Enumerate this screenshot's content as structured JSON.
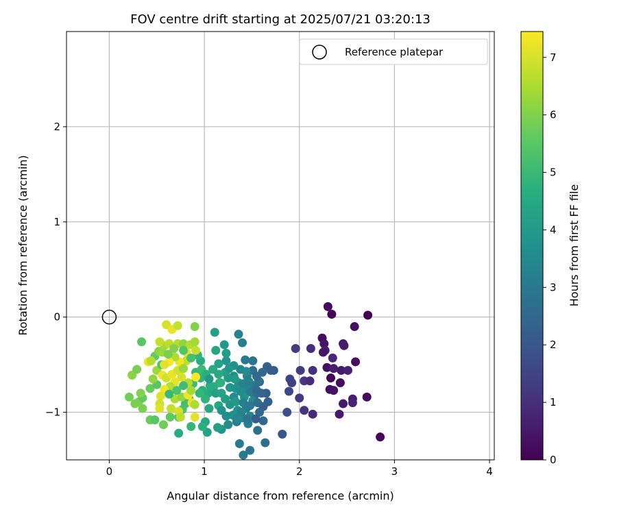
{
  "chart_data": {
    "type": "scatter",
    "title": "FOV centre drift starting at 2025/07/21 03:20:13",
    "xlabel": "Angular distance from reference (arcmin)",
    "ylabel": "Rotation from reference (arcmin)",
    "xlim": [
      -0.45,
      4.05
    ],
    "ylim": [
      -1.5,
      3.0
    ],
    "xticks": [
      "0",
      "1",
      "2",
      "3",
      "4"
    ],
    "yticks": [
      "−1",
      "0",
      "1",
      "2"
    ],
    "grid": true,
    "legend": {
      "location": "top-right",
      "entries": [
        "Reference platepar"
      ]
    },
    "reference": {
      "x": 0,
      "y": 0,
      "marker": "open-circle"
    },
    "colorbar": {
      "label": "Hours from first FF file",
      "colormap": "viridis",
      "range": [
        0,
        7.45
      ],
      "ticks": [
        "0",
        "1",
        "2",
        "3",
        "4",
        "5",
        "6",
        "7"
      ]
    },
    "series": [
      {
        "note_fields": "x (arcmin), y (arcmin), c (hours)",
        "points": [
          [
            2.72,
            0.02,
            0.0
          ],
          [
            2.34,
            0.03,
            0.1
          ],
          [
            2.3,
            0.11,
            0.2
          ],
          [
            2.58,
            -0.1,
            0.3
          ],
          [
            2.24,
            -0.22,
            0.25
          ],
          [
            2.26,
            -0.28,
            0.4
          ],
          [
            2.46,
            -0.28,
            0.5
          ],
          [
            2.47,
            -0.3,
            0.55
          ],
          [
            2.27,
            -0.35,
            0.6
          ],
          [
            2.25,
            -0.37,
            0.45
          ],
          [
            2.35,
            -0.43,
            0.8
          ],
          [
            2.59,
            -0.47,
            0.3
          ],
          [
            2.12,
            -0.33,
            0.9
          ],
          [
            2.29,
            -0.53,
            0.35
          ],
          [
            2.36,
            -0.54,
            0.65
          ],
          [
            2.44,
            -0.56,
            0.5
          ],
          [
            2.51,
            -0.56,
            0.7
          ],
          [
            2.33,
            -0.64,
            0.15
          ],
          [
            2.43,
            -0.69,
            0.25
          ],
          [
            2.32,
            -0.76,
            0.3
          ],
          [
            2.36,
            -0.77,
            0.4
          ],
          [
            2.71,
            -0.84,
            0.2
          ],
          [
            2.56,
            -0.86,
            0.6
          ],
          [
            2.46,
            -0.91,
            0.5
          ],
          [
            2.56,
            -0.9,
            0.75
          ],
          [
            2.42,
            -1.02,
            0.55
          ],
          [
            2.85,
            -1.26,
            0.1
          ],
          [
            2.14,
            -1.02,
            0.85
          ],
          [
            2.05,
            -0.98,
            1.1
          ],
          [
            2.14,
            -0.56,
            1.0
          ],
          [
            2.01,
            -0.56,
            1.3
          ],
          [
            2.05,
            -0.67,
            1.2
          ],
          [
            2.11,
            -0.67,
            0.9
          ],
          [
            1.9,
            -0.65,
            1.5
          ],
          [
            1.92,
            -0.69,
            1.4
          ],
          [
            1.89,
            -0.78,
            1.6
          ],
          [
            2.0,
            -0.85,
            1.2
          ],
          [
            1.96,
            -0.33,
            1.3
          ],
          [
            1.87,
            -1.0,
            1.8
          ],
          [
            1.82,
            -1.23,
            2.0
          ],
          [
            1.73,
            -0.56,
            2.1
          ],
          [
            1.66,
            -0.52,
            2.3
          ],
          [
            1.7,
            -0.56,
            2.2
          ],
          [
            1.61,
            -0.58,
            2.5
          ],
          [
            1.58,
            -0.68,
            2.4
          ],
          [
            1.65,
            -0.8,
            2.2
          ],
          [
            1.67,
            -0.89,
            2.3
          ],
          [
            1.58,
            -1.0,
            2.6
          ],
          [
            1.62,
            -1.09,
            2.5
          ],
          [
            1.56,
            -1.19,
            2.8
          ],
          [
            1.64,
            -1.32,
            2.7
          ],
          [
            1.48,
            -1.4,
            2.9
          ],
          [
            1.41,
            -1.45,
            3.0
          ],
          [
            1.37,
            -1.33,
            3.1
          ],
          [
            1.51,
            -0.46,
            2.9
          ],
          [
            1.43,
            -0.45,
            3.0
          ],
          [
            1.4,
            -0.27,
            3.2
          ],
          [
            1.36,
            -0.18,
            3.3
          ],
          [
            1.51,
            -0.56,
            2.7
          ],
          [
            1.45,
            -0.62,
            3.2
          ],
          [
            1.53,
            -0.72,
            2.9
          ],
          [
            1.46,
            -0.76,
            3.4
          ],
          [
            1.53,
            -0.82,
            2.6
          ],
          [
            1.51,
            -0.88,
            3.5
          ],
          [
            1.44,
            -0.96,
            3.1
          ],
          [
            1.48,
            -1.04,
            3.4
          ],
          [
            1.4,
            -1.06,
            3.6
          ],
          [
            1.46,
            -1.12,
            3.3
          ],
          [
            1.34,
            -1.1,
            3.0
          ],
          [
            1.35,
            -0.98,
            3.7
          ],
          [
            1.42,
            -0.84,
            3.8
          ],
          [
            1.31,
            -0.84,
            3.6
          ],
          [
            1.27,
            -0.92,
            3.9
          ],
          [
            1.36,
            -0.69,
            3.5
          ],
          [
            1.31,
            -0.62,
            3.7
          ],
          [
            1.38,
            -0.55,
            3.4
          ],
          [
            1.31,
            -0.51,
            3.8
          ],
          [
            1.23,
            -0.46,
            3.9
          ],
          [
            1.21,
            -0.29,
            4.0
          ],
          [
            1.23,
            -0.38,
            4.1
          ],
          [
            1.11,
            -0.16,
            4.2
          ],
          [
            1.15,
            -0.49,
            4.3
          ],
          [
            1.12,
            -0.35,
            4.4
          ],
          [
            1.22,
            -0.58,
            4.2
          ],
          [
            1.25,
            -0.64,
            4.0
          ],
          [
            1.27,
            -0.74,
            3.9
          ],
          [
            1.17,
            -0.69,
            4.3
          ],
          [
            1.15,
            -0.6,
            4.5
          ],
          [
            1.22,
            -0.86,
            4.1
          ],
          [
            1.15,
            -0.93,
            4.4
          ],
          [
            1.18,
            -0.98,
            3.8
          ],
          [
            1.23,
            -1.04,
            3.6
          ],
          [
            1.25,
            -1.13,
            3.5
          ],
          [
            1.18,
            -1.18,
            3.9
          ],
          [
            1.14,
            -1.16,
            4.2
          ],
          [
            1.01,
            -1.1,
            4.5
          ],
          [
            1.03,
            -1.21,
            4.3
          ],
          [
            0.98,
            -1.15,
            4.7
          ],
          [
            0.86,
            -1.15,
            4.9
          ],
          [
            0.73,
            -1.22,
            4.6
          ],
          [
            1.06,
            -0.72,
            4.6
          ],
          [
            1.04,
            -0.8,
            4.5
          ],
          [
            1.01,
            -0.86,
            4.8
          ],
          [
            0.98,
            -0.77,
            4.7
          ],
          [
            0.96,
            -0.64,
            4.8
          ],
          [
            0.91,
            -0.58,
            4.9
          ],
          [
            0.96,
            -0.46,
            4.6
          ],
          [
            0.93,
            -0.4,
            4.8
          ],
          [
            0.97,
            -0.55,
            5.0
          ],
          [
            0.88,
            -0.7,
            5.1
          ],
          [
            0.84,
            -0.86,
            5.0
          ],
          [
            0.8,
            -0.91,
            5.2
          ],
          [
            0.77,
            -0.97,
            5.3
          ],
          [
            0.73,
            -1.05,
            5.4
          ],
          [
            0.64,
            -1.05,
            5.6
          ],
          [
            0.57,
            -1.13,
            5.8
          ],
          [
            0.43,
            -1.08,
            5.7
          ],
          [
            0.48,
            -1.08,
            5.5
          ],
          [
            0.35,
            -0.96,
            5.9
          ],
          [
            0.31,
            -0.89,
            6.0
          ],
          [
            0.35,
            -0.85,
            5.6
          ],
          [
            0.27,
            -0.91,
            5.9
          ],
          [
            0.21,
            -0.84,
            5.8
          ],
          [
            0.24,
            -0.61,
            6.1
          ],
          [
            0.29,
            -0.55,
            5.9
          ],
          [
            0.34,
            -0.26,
            5.5
          ],
          [
            0.33,
            -0.8,
            6.0
          ],
          [
            0.43,
            -0.75,
            5.7
          ],
          [
            0.5,
            -0.71,
            5.5
          ],
          [
            0.46,
            -0.65,
            6.2
          ],
          [
            0.5,
            -0.56,
            6.3
          ],
          [
            0.55,
            -0.5,
            5.4
          ],
          [
            0.48,
            -0.41,
            5.6
          ],
          [
            0.52,
            -0.36,
            6.1
          ],
          [
            0.58,
            -0.3,
            6.4
          ],
          [
            0.63,
            -0.28,
            6.7
          ],
          [
            0.6,
            -0.08,
            7.0
          ],
          [
            0.66,
            -0.13,
            7.2
          ],
          [
            0.72,
            -0.09,
            6.8
          ],
          [
            0.72,
            -0.28,
            6.6
          ],
          [
            0.78,
            -0.28,
            6.2
          ],
          [
            0.85,
            -0.29,
            6.6
          ],
          [
            0.9,
            -0.26,
            6.4
          ],
          [
            0.9,
            -0.1,
            6.0
          ],
          [
            0.91,
            -0.35,
            6.8
          ],
          [
            0.81,
            -0.37,
            7.1
          ],
          [
            0.81,
            -0.46,
            6.7
          ],
          [
            0.74,
            -0.47,
            7.3
          ],
          [
            0.69,
            -0.42,
            6.5
          ],
          [
            0.63,
            -0.47,
            7.4
          ],
          [
            0.58,
            -0.5,
            7.1
          ],
          [
            0.56,
            -0.61,
            7.3
          ],
          [
            0.6,
            -0.64,
            6.9
          ],
          [
            0.66,
            -0.6,
            7.2
          ],
          [
            0.72,
            -0.56,
            6.9
          ],
          [
            0.78,
            -0.54,
            6.3
          ],
          [
            0.76,
            -0.63,
            7.0
          ],
          [
            0.69,
            -0.68,
            7.2
          ],
          [
            0.64,
            -0.73,
            6.6
          ],
          [
            0.58,
            -0.76,
            7.3
          ],
          [
            0.54,
            -0.83,
            7.1
          ],
          [
            0.53,
            -0.91,
            6.9
          ],
          [
            0.53,
            -0.96,
            7.1
          ],
          [
            0.65,
            -0.96,
            6.8
          ],
          [
            0.73,
            -0.99,
            7.0
          ],
          [
            0.75,
            -1.05,
            6.7
          ],
          [
            0.69,
            -0.86,
            6.5
          ],
          [
            0.76,
            -0.84,
            6.2
          ],
          [
            0.83,
            -0.82,
            7.3
          ],
          [
            0.86,
            -0.77,
            6.4
          ],
          [
            0.87,
            -0.9,
            7.2
          ],
          [
            0.9,
            -0.92,
            6.5
          ],
          [
            0.9,
            -1.05,
            7.1
          ],
          [
            0.83,
            -0.69,
            6.6
          ],
          [
            0.91,
            -0.63,
            7.4
          ],
          [
            0.41,
            -0.47,
            7.2
          ],
          [
            0.44,
            -0.46,
            6.6
          ],
          [
            0.53,
            -0.26,
            6.8
          ],
          [
            0.56,
            -0.37,
            6.3
          ],
          [
            0.62,
            -0.39,
            5.9
          ],
          [
            0.68,
            -0.33,
            6.0
          ],
          [
            0.78,
            -0.35,
            5.4
          ],
          [
            0.86,
            -0.43,
            5.2
          ],
          [
            0.78,
            -0.72,
            5.1
          ],
          [
            0.71,
            -0.77,
            5.3
          ],
          [
            0.63,
            -0.81,
            5.0
          ],
          [
            0.95,
            -0.8,
            4.9
          ],
          [
            1.05,
            -0.96,
            4.4
          ],
          [
            1.1,
            -0.73,
            4.6
          ],
          [
            1.09,
            -0.55,
            4.5
          ],
          [
            1.02,
            -0.6,
            4.7
          ],
          [
            1.05,
            -0.65,
            4.0
          ],
          [
            1.12,
            -0.8,
            4.2
          ],
          [
            1.18,
            -0.8,
            4.3
          ],
          [
            1.16,
            -0.69,
            4.8
          ],
          [
            1.26,
            -0.54,
            3.9
          ],
          [
            1.32,
            -0.65,
            4.0
          ],
          [
            1.33,
            -0.75,
            3.8
          ],
          [
            1.33,
            -0.89,
            4.0
          ],
          [
            1.38,
            -0.78,
            3.6
          ],
          [
            1.41,
            -0.7,
            3.3
          ],
          [
            1.44,
            -0.57,
            3.5
          ],
          [
            1.47,
            -0.68,
            3.2
          ],
          [
            1.49,
            -0.79,
            3.0
          ],
          [
            1.41,
            -0.9,
            3.2
          ],
          [
            1.48,
            -0.93,
            3.0
          ],
          [
            1.39,
            -1.0,
            3.3
          ],
          [
            1.3,
            -1.03,
            3.7
          ],
          [
            1.34,
            -1.07,
            3.4
          ],
          [
            1.56,
            -0.9,
            2.7
          ],
          [
            1.55,
            -0.77,
            2.6
          ],
          [
            1.57,
            -0.67,
            2.8
          ],
          [
            1.55,
            -0.62,
            2.5
          ],
          [
            1.6,
            -0.8,
            2.4
          ],
          [
            1.62,
            -0.94,
            2.3
          ],
          [
            1.54,
            -1.07,
            2.2
          ],
          [
            1.45,
            -1.07,
            2.9
          ]
        ]
      }
    ]
  }
}
